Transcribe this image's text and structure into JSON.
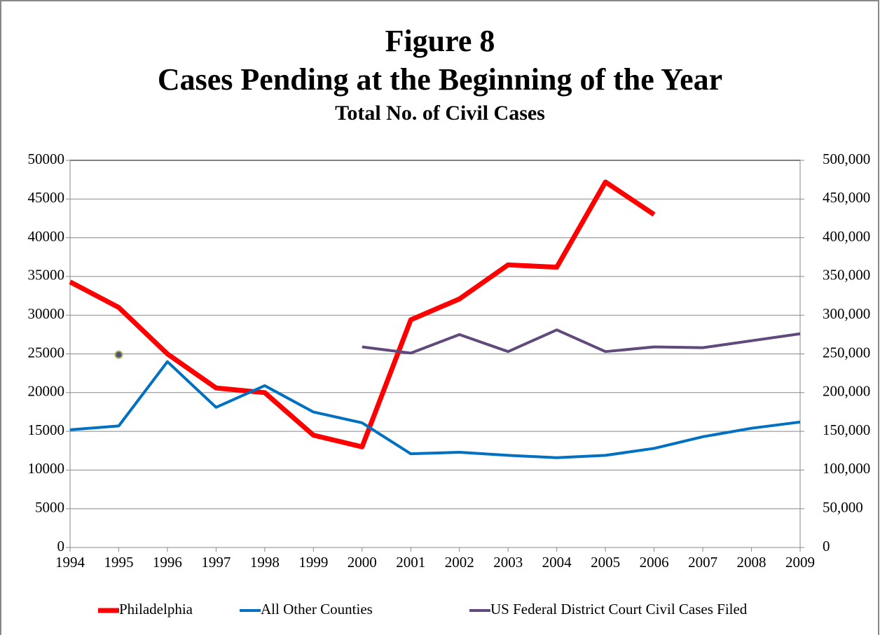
{
  "chart_data": {
    "type": "line",
    "title": "Figure 8",
    "subtitle": "Cases Pending at the Beginning of the Year",
    "subtitle2": "Total No. of Civil Cases",
    "categories": [
      "1994",
      "1995",
      "1996",
      "1997",
      "1998",
      "1999",
      "2000",
      "2001",
      "2002",
      "2003",
      "2004",
      "2005",
      "2006",
      "2007",
      "2008",
      "2009"
    ],
    "ylim": [
      0,
      50000
    ],
    "yticks": [
      0,
      5000,
      10000,
      15000,
      20000,
      25000,
      30000,
      35000,
      40000,
      45000,
      50000
    ],
    "y2lim": [
      0,
      500000
    ],
    "y2ticks": [
      0,
      {
        "value": 50000,
        "label": "50,000"
      },
      {
        "value": 100000,
        "label": "100,000"
      },
      {
        "value": 150000,
        "label": "150,000"
      },
      {
        "value": 200000,
        "label": "200,000"
      },
      {
        "value": 250000,
        "label": "250,000"
      },
      {
        "value": 300000,
        "label": "300,000"
      },
      {
        "value": 350000,
        "label": "350,000"
      },
      {
        "value": 400000,
        "label": "400,000"
      },
      {
        "value": 450000,
        "label": "450,000"
      },
      {
        "value": 500000,
        "label": "500,000"
      }
    ],
    "grid": true,
    "legend": "bottom",
    "series": [
      {
        "name": "Philadelphia",
        "color": "#ff0000",
        "width": 7,
        "values": [
          34300,
          31000,
          25000,
          20600,
          20000,
          14500,
          13000,
          29400,
          32100,
          36500,
          36200,
          47200,
          43000,
          null,
          null,
          null
        ]
      },
      {
        "name": "All Other Counties",
        "color": "#0070c0",
        "width": 4,
        "values": [
          15200,
          15700,
          24000,
          18100,
          20900,
          17500,
          16100,
          12100,
          12300,
          11900,
          11600,
          11900,
          12800,
          14300,
          15400,
          16200
        ]
      },
      {
        "name": "US Federal District Court Civil Cases Filed",
        "color": "#604a7b",
        "width": 4,
        "axis": "y2",
        "marker_edge_color": "#9bbb59",
        "values": [
          null,
          249000,
          null,
          null,
          null,
          null,
          259000,
          251000,
          275000,
          253000,
          281000,
          253000,
          259000,
          258000,
          267000,
          276000
        ]
      }
    ]
  }
}
